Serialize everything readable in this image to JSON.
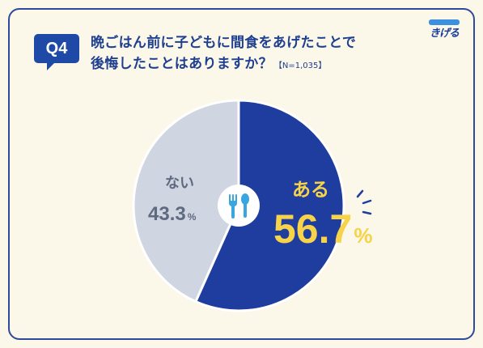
{
  "header": {
    "badge": "Q4",
    "question_line1": "晩ごはん前に子どもに間食をあげたことで",
    "question_line2": "後悔したことはありますか？",
    "sample_size": "【N=1,035】"
  },
  "logo": {
    "text": "きげる"
  },
  "colors": {
    "yes": "#1f3d9e",
    "no": "#cfd5e1",
    "accent_text": "#f7d34a",
    "no_text": "#5f6a80"
  },
  "chart_data": {
    "type": "pie",
    "title": "",
    "slices": [
      {
        "label": "ある",
        "value": 56.7,
        "value_text": "56.7",
        "unit": "%"
      },
      {
        "label": "ない",
        "value": 43.3,
        "value_text": "43.3",
        "unit": "%"
      }
    ],
    "center_icon": "fork-spoon-icon"
  }
}
